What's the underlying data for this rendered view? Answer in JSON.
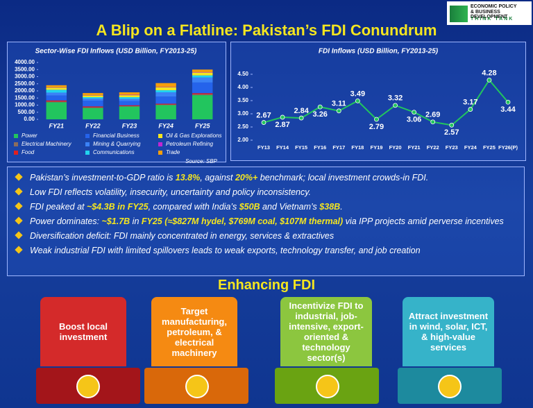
{
  "header": {
    "title": "A Blip on a Flatline: Pakistan’s FDI Conundrum",
    "logo_line1": "ECONOMIC POLICY",
    "logo_line2": "& BUSINESS DEVELOPMENT",
    "logo_line3": "THINK TANK"
  },
  "chart_data": [
    {
      "type": "stacked-bar",
      "title": "Sector-Wise FDI Inflows (USD Billion, FY2013-25)",
      "categories": [
        "FY21",
        "FY22",
        "FY23",
        "FY24",
        "FY25"
      ],
      "series": [
        {
          "name": "Power",
          "color": "#22c55e",
          "values": [
            1200,
            800,
            900,
            1000,
            1700
          ]
        },
        {
          "name": "Electrical Machinery",
          "color": "#8b6d5c",
          "values": [
            50,
            40,
            30,
            40,
            60
          ]
        },
        {
          "name": "Food",
          "color": "#e02020",
          "values": [
            80,
            70,
            60,
            60,
            80
          ]
        },
        {
          "name": "Financial Business",
          "color": "#2563eb",
          "values": [
            350,
            400,
            300,
            500,
            750
          ]
        },
        {
          "name": "Mining & Quarrying",
          "color": "#3b82f6",
          "values": [
            200,
            150,
            150,
            300,
            350
          ]
        },
        {
          "name": "Communications",
          "color": "#22d3ee",
          "values": [
            200,
            100,
            120,
            150,
            150
          ]
        },
        {
          "name": "Oil & Gas Explorations",
          "color": "#f5e61f",
          "values": [
            150,
            120,
            140,
            200,
            200
          ]
        },
        {
          "name": "Petroleum Refining",
          "color": "#c026d3",
          "values": [
            20,
            20,
            30,
            20,
            30
          ]
        },
        {
          "name": "Trade",
          "color": "#f59e0b",
          "values": [
            150,
            150,
            170,
            280,
            180
          ]
        }
      ],
      "ylim": [
        0,
        4000
      ],
      "yticks": [
        {
          "value": 0,
          "label": "0.00"
        },
        {
          "value": 500,
          "label": "500.00"
        },
        {
          "value": 1000,
          "label": "1000.00"
        },
        {
          "value": 1500,
          "label": "1500.00"
        },
        {
          "value": 2000,
          "label": "2000.00"
        },
        {
          "value": 2500,
          "label": "2500.00"
        },
        {
          "value": 3000,
          "label": "3000.00"
        },
        {
          "value": 3500,
          "label": "3500.00"
        },
        {
          "value": 4000,
          "label": "4000.00"
        }
      ],
      "source": "Source: SBP"
    },
    {
      "type": "line",
      "title": "FDI Inflows (USD Billion, FY2013-25)",
      "categories": [
        "FY13",
        "FY14",
        "FY15",
        "FY16",
        "FY17",
        "FY18",
        "FY19",
        "FY20",
        "FY21",
        "FY22",
        "FY23",
        "FY24",
        "FY25",
        "FY26(P)"
      ],
      "values": [
        2.67,
        2.87,
        2.84,
        3.26,
        3.11,
        3.49,
        2.79,
        3.32,
        3.06,
        2.69,
        2.57,
        3.17,
        4.28,
        3.44
      ],
      "color": "#22c55e",
      "ylim": [
        2.0,
        4.5
      ],
      "yticks": [
        {
          "value": 2,
          "label": "2.00"
        },
        {
          "value": 2.5,
          "label": "2.50"
        },
        {
          "value": 3,
          "label": "3.00"
        },
        {
          "value": 3.5,
          "label": "3.50"
        },
        {
          "value": 4,
          "label": "4.00"
        },
        {
          "value": 4.5,
          "label": "4.50"
        }
      ]
    }
  ],
  "bullets": [
    [
      "Pakistan’s investment-to-GDP ratio is ",
      "13.8%",
      ", against ",
      "20%+",
      " benchmark; local investment crowds-in FDI."
    ],
    [
      "Low FDI reflects volatility, insecurity, uncertainty and policy inconsistency."
    ],
    [
      "FDI peaked at ",
      "~$4.3B in FY25",
      ", compared with India’s ",
      "$50B",
      " and Vietnam’s ",
      "$38B",
      "."
    ],
    [
      "Power dominates: ",
      "~$1.7B",
      " in ",
      "FY25 (≈$827M hydel, $769M coal, $107M thermal)",
      " via IPP projects amid perverse incentives"
    ],
    [
      "Diversification deficit: FDI mainly concentrated in energy, services & extractives"
    ],
    [
      "Weak industrial FDI with limited spillovers leads to weak exports, technology transfer, and job creation"
    ]
  ],
  "section_title": "Enhancing FDI",
  "cards": [
    "Boost local investment",
    "Target manufacturing, petroleum, & electrical machinery",
    "Incentivize FDI to industrial, job-intensive, export-oriented & technology sector(s)",
    "Attract investment in wind, solar, ICT, & high-value services"
  ]
}
